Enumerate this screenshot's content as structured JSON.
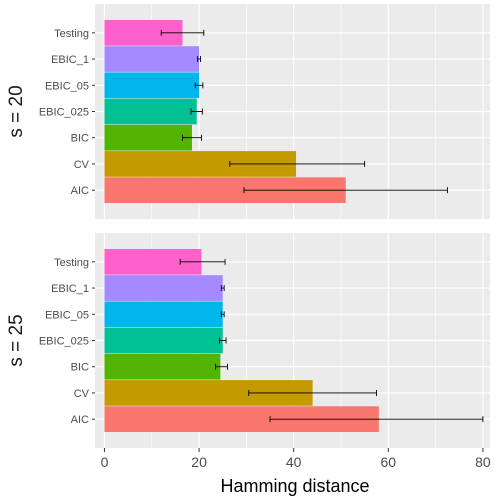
{
  "chart_data": {
    "type": "bar",
    "orientation": "horizontal",
    "xlabel": "Hamming distance",
    "xlim": [
      -2,
      81.5
    ],
    "xticks": [
      0,
      20,
      40,
      60,
      80
    ],
    "grid": true,
    "legend": "none",
    "categories": [
      "Testing",
      "EBIC_1",
      "EBIC_05",
      "EBIC_025",
      "BIC",
      "CV",
      "AIC"
    ],
    "colors": {
      "Testing": "#FF61CC",
      "EBIC_1": "#A58AFF",
      "EBIC_05": "#00B6EB",
      "EBIC_025": "#00C094",
      "BIC": "#53B400",
      "CV": "#C49A00",
      "AIC": "#F8766D"
    },
    "facets": [
      {
        "label": "s = 20",
        "bars": [
          {
            "category": "Testing",
            "value": 16.5,
            "err_low": 12.0,
            "err_high": 21.0
          },
          {
            "category": "EBIC_1",
            "value": 20.0,
            "err_low": 19.7,
            "err_high": 20.3
          },
          {
            "category": "EBIC_05",
            "value": 20.0,
            "err_low": 19.2,
            "err_high": 20.8
          },
          {
            "category": "EBIC_025",
            "value": 19.5,
            "err_low": 18.3,
            "err_high": 20.7
          },
          {
            "category": "BIC",
            "value": 18.5,
            "err_low": 16.5,
            "err_high": 20.5
          },
          {
            "category": "CV",
            "value": 40.5,
            "err_low": 26.5,
            "err_high": 55.0
          },
          {
            "category": "AIC",
            "value": 51.0,
            "err_low": 29.5,
            "err_high": 72.5
          }
        ]
      },
      {
        "label": "s = 25",
        "bars": [
          {
            "category": "Testing",
            "value": 20.5,
            "err_low": 16.0,
            "err_high": 25.5
          },
          {
            "category": "EBIC_1",
            "value": 25.0,
            "err_low": 24.7,
            "err_high": 25.3
          },
          {
            "category": "EBIC_05",
            "value": 25.0,
            "err_low": 24.7,
            "err_high": 25.3
          },
          {
            "category": "EBIC_025",
            "value": 25.0,
            "err_low": 24.3,
            "err_high": 25.7
          },
          {
            "category": "BIC",
            "value": 24.5,
            "err_low": 23.5,
            "err_high": 26.0
          },
          {
            "category": "CV",
            "value": 44.0,
            "err_low": 30.5,
            "err_high": 57.5
          },
          {
            "category": "AIC",
            "value": 58.0,
            "err_low": 35.0,
            "err_high": 80.0
          }
        ]
      }
    ]
  }
}
